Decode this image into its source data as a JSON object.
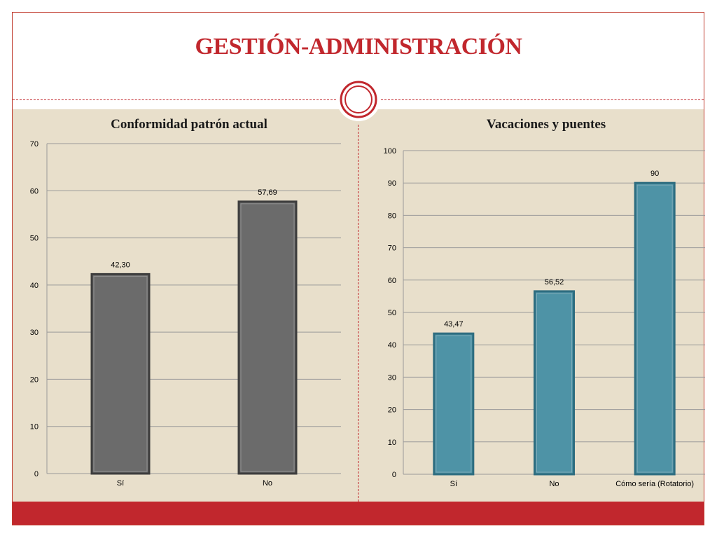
{
  "slide": {
    "title": "GESTIÓN-ADMINISTRACIÓN",
    "accent_color": "#c1272d",
    "panel_color": "#e8dfcb"
  },
  "chart_data": [
    {
      "type": "bar",
      "title": "Conformidad patrón actual",
      "categories": [
        "Sí",
        "No"
      ],
      "values": [
        42.3,
        57.69
      ],
      "data_labels": [
        "42,30",
        "57,69"
      ],
      "ylim": [
        0,
        70
      ],
      "yticks": [
        0,
        10,
        20,
        30,
        40,
        50,
        60,
        70
      ],
      "grid": true,
      "bar_color": "#6b6b6b"
    },
    {
      "type": "bar",
      "title": "Vacaciones y puentes",
      "categories": [
        "Sí",
        "No",
        "Cómo sería (Rotatorio)"
      ],
      "values": [
        43.47,
        56.52,
        90
      ],
      "data_labels": [
        "43,47",
        "56,52",
        "90"
      ],
      "ylim": [
        0,
        100
      ],
      "yticks": [
        0,
        10,
        20,
        30,
        40,
        50,
        60,
        70,
        80,
        90,
        100
      ],
      "grid": true,
      "bar_color": "#4e93a6"
    }
  ]
}
